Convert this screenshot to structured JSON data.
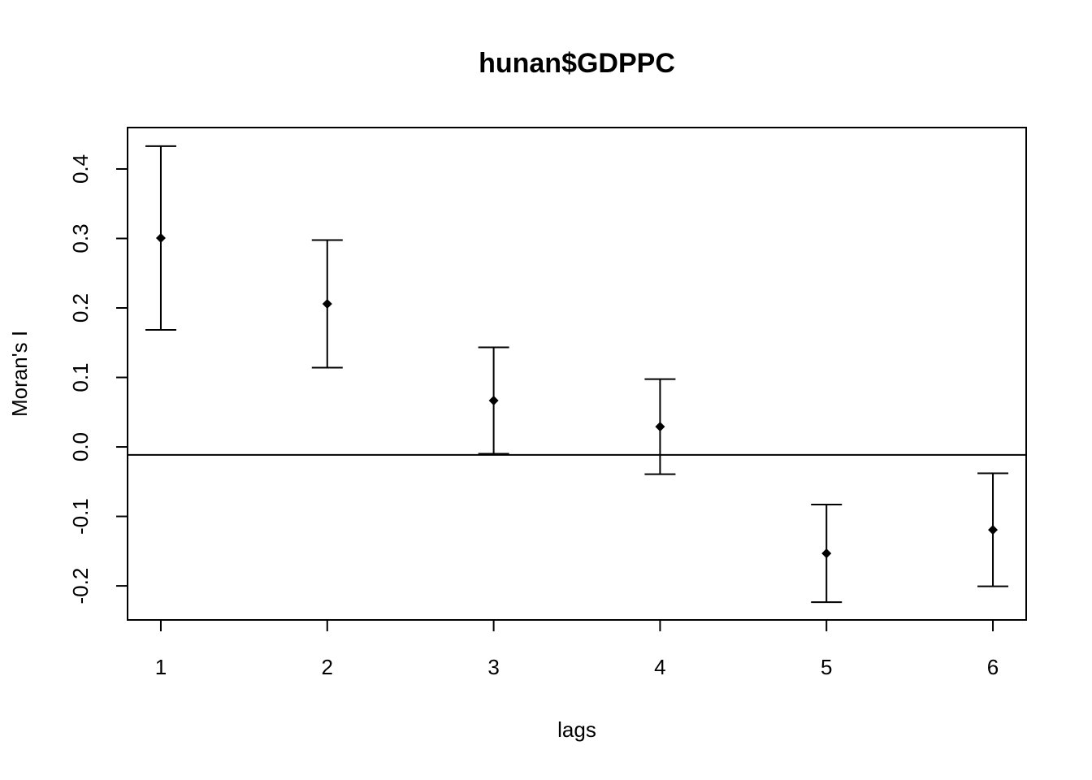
{
  "chart_data": {
    "type": "scatter",
    "title": "hunan$GDPPC",
    "x_label": "lags",
    "y_label": "Moran's  I",
    "x": [
      1,
      2,
      3,
      4,
      5,
      6
    ],
    "values": [
      0.3006,
      0.2058,
      0.0667,
      0.0292,
      -0.1532,
      -0.1193
    ],
    "errors": [
      0.1322,
      0.0918,
      0.0766,
      0.0684,
      0.0702,
      0.0813
    ],
    "reference_line": -0.0115,
    "color": "#000000",
    "xlim": [
      0.8,
      6.2
    ],
    "xticks": [
      1,
      2,
      3,
      4,
      5,
      6
    ],
    "ylim": [
      -0.249,
      0.4596
    ],
    "yticks": [
      -0.2,
      -0.1,
      {
        "value": 0,
        "label": "0.0"
      },
      0.1,
      0.2,
      0.3,
      0.4
    ],
    "grid": false
  }
}
